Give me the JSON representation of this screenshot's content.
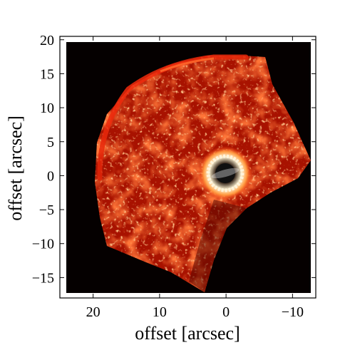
{
  "figure": {
    "x_axis": {
      "label": "offset [arcsec]",
      "ticks": [
        {
          "value": 20,
          "label": "20"
        },
        {
          "value": 10,
          "label": "10"
        },
        {
          "value": 0,
          "label": "0"
        },
        {
          "value": -10,
          "label": "−10"
        }
      ],
      "range": [
        25,
        -13.5
      ],
      "direction": "decreasing-left-to-right"
    },
    "y_axis": {
      "label": "offset [arcsec]",
      "ticks": [
        {
          "value": 20,
          "label": "20"
        },
        {
          "value": 15,
          "label": "15"
        },
        {
          "value": 10,
          "label": "10"
        },
        {
          "value": 5,
          "label": "5"
        },
        {
          "value": 0,
          "label": "0"
        },
        {
          "value": -5,
          "label": "−5"
        },
        {
          "value": -10,
          "label": "−10"
        },
        {
          "value": -15,
          "label": "−15"
        }
      ],
      "range": [
        -18,
        20.5
      ]
    },
    "colors": {
      "background": "#050000",
      "glow": "#b01000",
      "bright": "#ff3a10",
      "hot": "#ffb060",
      "star": "#ffffff"
    }
  }
}
